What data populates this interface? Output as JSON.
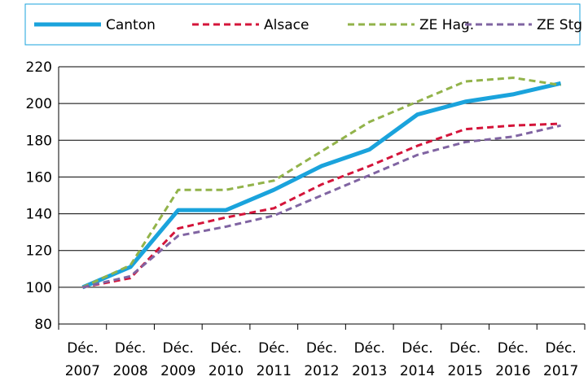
{
  "chart_data": {
    "type": "line",
    "categories": [
      [
        "Déc.",
        "2007"
      ],
      [
        "Déc.",
        "2008"
      ],
      [
        "Déc.",
        "2009"
      ],
      [
        "Déc.",
        "2010"
      ],
      [
        "Déc.",
        "2011"
      ],
      [
        "Déc.",
        "2012"
      ],
      [
        "Déc.",
        "2013"
      ],
      [
        "Déc.",
        "2014"
      ],
      [
        "Déc.",
        "2015"
      ],
      [
        "Déc.",
        "2016"
      ],
      [
        "Déc.",
        "2017"
      ]
    ],
    "ylim": [
      80,
      220
    ],
    "yticks": [
      80,
      100,
      120,
      140,
      160,
      180,
      200,
      220
    ],
    "grid": true,
    "legend_position": "top",
    "series": [
      {
        "name": "Canton",
        "color": "#1aa3dc",
        "style": "solid",
        "values": [
          100,
          111,
          142,
          142,
          153,
          166,
          175,
          194,
          201,
          205,
          211
        ]
      },
      {
        "name": "Alsace",
        "color": "#d4143a",
        "style": "dashed",
        "values": [
          100,
          105,
          132,
          138,
          143,
          156,
          166,
          177,
          186,
          188,
          189
        ]
      },
      {
        "name": "ZE Hag.",
        "color": "#92b34a",
        "style": "dashed",
        "values": [
          100,
          112,
          153,
          153,
          158,
          174,
          190,
          201,
          212,
          214,
          210
        ]
      },
      {
        "name": "ZE Stg",
        "color": "#8064a2",
        "style": "dashed",
        "values": [
          100,
          106,
          128,
          133,
          139,
          150,
          161,
          172,
          179,
          182,
          188
        ]
      }
    ]
  }
}
